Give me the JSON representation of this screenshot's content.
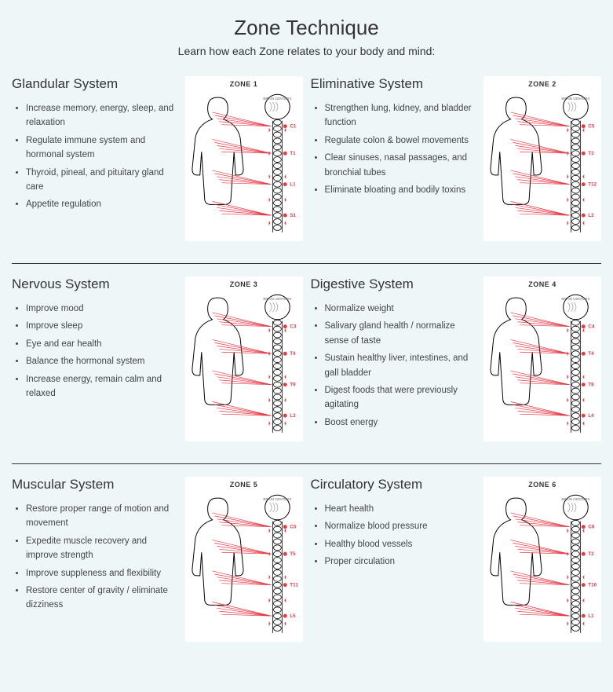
{
  "title": "Zone Technique",
  "subtitle": "Learn how each Zone relates to your body and mind:",
  "colors": {
    "background": "#eef6f8",
    "text": "#333333",
    "bullet_text": "#444444",
    "diagram_bg": "#ffffff",
    "diagram_outline": "#000000",
    "diagram_accent": "#e63946",
    "divider": "#333333"
  },
  "typography": {
    "title_fontsize": 26,
    "subtitle_fontsize": 14,
    "heading_fontsize": 17,
    "bullet_fontsize": 11.5
  },
  "zones": [
    {
      "label": "ZONE 1",
      "heading": "Glandular System",
      "bullets": [
        "Increase memory, energy, sleep, and relaxation",
        "Regulate immune system and hormonal system",
        "Thyroid, pineal, and pituitary gland care",
        "Appetite regulation"
      ],
      "spine_markers": [
        "C1",
        "T1",
        "L1",
        "S1"
      ]
    },
    {
      "label": "ZONE 2",
      "heading": "Eliminative System",
      "bullets": [
        "Strengthen lung, kidney, and bladder function",
        "Regulate colon & bowel movements",
        "Clear sinuses, nasal passages, and bronchial tubes",
        "Eliminate bloating and bodily toxins"
      ],
      "spine_markers": [
        "C5",
        "T3",
        "T12",
        "L2"
      ]
    },
    {
      "label": "ZONE 3",
      "heading": "Nervous System",
      "bullets": [
        "Improve mood",
        "Improve sleep",
        "Eye and ear health",
        "Balance the hormonal system",
        "Increase energy, remain calm and relaxed"
      ],
      "spine_markers": [
        "C3",
        "T4",
        "T9",
        "L3"
      ]
    },
    {
      "label": "ZONE 4",
      "heading": "Digestive System",
      "bullets": [
        "Normalize weight",
        "Salivary gland health / normalize sense of taste",
        "Sustain healthy liver, intestines, and gall bladder",
        "Digest foods that were previously agitating",
        "Boost energy"
      ],
      "spine_markers": [
        "C4",
        "T4",
        "T8",
        "L4"
      ]
    },
    {
      "label": "ZONE 5",
      "heading": "Muscular System",
      "bullets": [
        "Restore proper range of motion and movement",
        "Expedite muscle recovery and improve strength",
        "Improve suppleness and flexibility",
        "Restore center of gravity / eliminate dizziness"
      ],
      "spine_markers": [
        "C5",
        "T5",
        "T11",
        "L5"
      ]
    },
    {
      "label": "ZONE 6",
      "heading": "Circulatory System",
      "bullets": [
        "Heart health",
        "Normalize blood pressure",
        "Healthy blood vessels",
        "Proper circulation"
      ],
      "spine_markers": [
        "C6",
        "T2",
        "T10",
        "L1"
      ]
    }
  ]
}
